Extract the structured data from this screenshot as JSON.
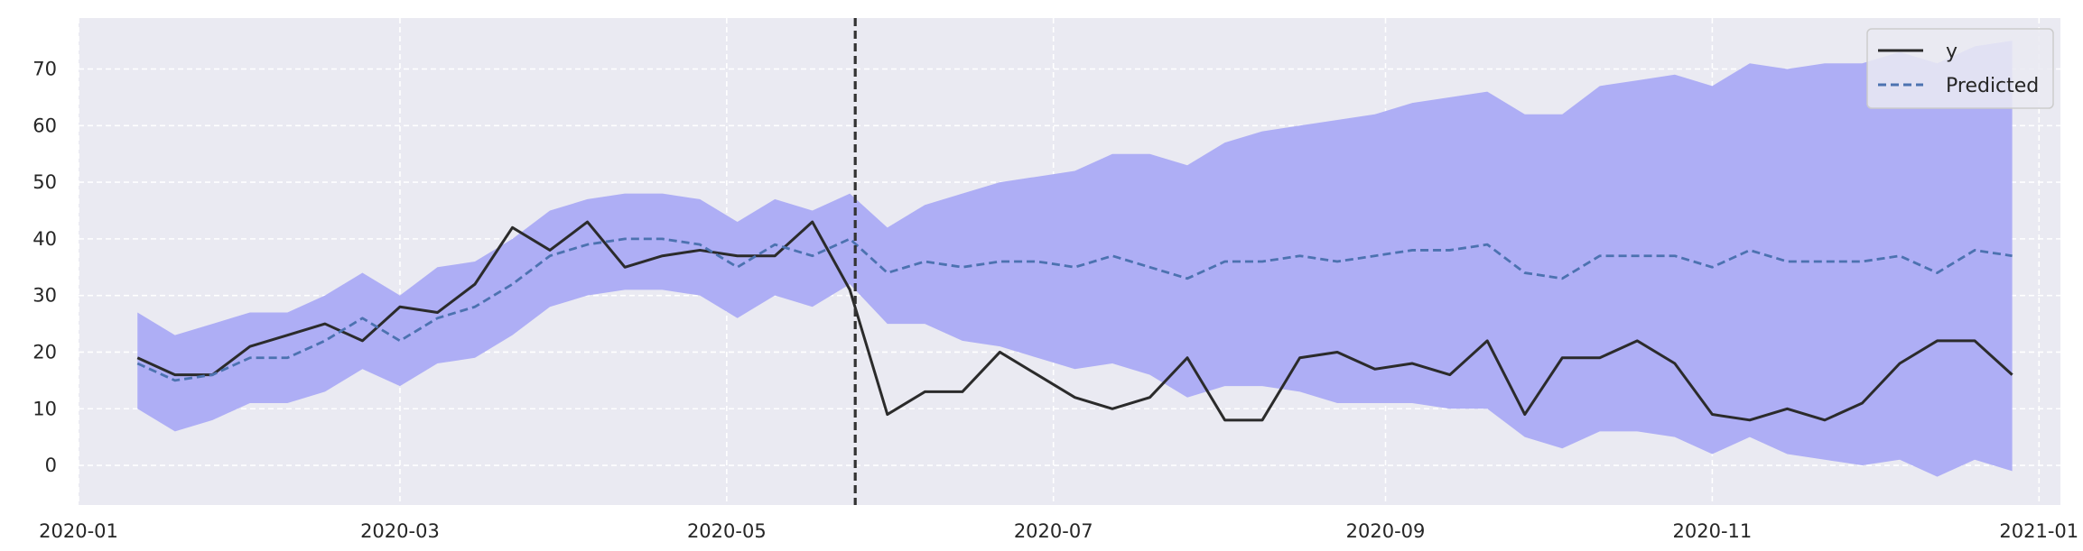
{
  "chart_data": {
    "type": "line",
    "title": "",
    "xlabel": "",
    "ylabel": "",
    "x_axis": {
      "type": "date",
      "range": [
        "2020-01-01",
        "2021-01-05"
      ],
      "ticks": [
        "2020-01-01",
        "2020-03-01",
        "2020-05-01",
        "2020-07-01",
        "2020-09-01",
        "2020-11-01",
        "2021-01-01"
      ],
      "tick_labels": [
        "2020-01",
        "2020-03",
        "2020-05",
        "2020-07",
        "2020-09",
        "2020-11",
        "2021-01"
      ]
    },
    "y_axis": {
      "range": [
        -7,
        79
      ],
      "ticks": [
        0,
        10,
        20,
        30,
        40,
        50,
        60,
        70
      ],
      "tick_labels": [
        "0",
        "10",
        "20",
        "30",
        "40",
        "50",
        "60",
        "70"
      ]
    },
    "grid": true,
    "grid_style": "dashed white",
    "background": "#eaeaf2",
    "legend_position": "top-right",
    "dates": [
      "2020-01-12",
      "2020-01-19",
      "2020-01-26",
      "2020-02-02",
      "2020-02-09",
      "2020-02-16",
      "2020-02-23",
      "2020-03-01",
      "2020-03-08",
      "2020-03-15",
      "2020-03-22",
      "2020-03-29",
      "2020-04-05",
      "2020-04-12",
      "2020-04-19",
      "2020-04-26",
      "2020-05-03",
      "2020-05-10",
      "2020-05-17",
      "2020-05-24",
      "2020-05-31",
      "2020-06-07",
      "2020-06-14",
      "2020-06-21",
      "2020-06-28",
      "2020-07-05",
      "2020-07-12",
      "2020-07-19",
      "2020-07-26",
      "2020-08-02",
      "2020-08-09",
      "2020-08-16",
      "2020-08-23",
      "2020-08-30",
      "2020-09-06",
      "2020-09-13",
      "2020-09-20",
      "2020-09-27",
      "2020-10-04",
      "2020-10-11",
      "2020-10-18",
      "2020-10-25",
      "2020-11-01",
      "2020-11-08",
      "2020-11-15",
      "2020-11-22",
      "2020-11-29",
      "2020-12-06",
      "2020-12-13",
      "2020-12-20",
      "2020-12-27"
    ],
    "series": [
      {
        "name": "y",
        "color": "#2b2b2b",
        "style": "solid",
        "values": [
          19,
          16,
          16,
          21,
          23,
          25,
          22,
          28,
          27,
          32,
          42,
          38,
          43,
          35,
          37,
          38,
          37,
          37,
          43,
          31,
          9,
          13,
          13,
          20,
          16,
          12,
          10,
          12,
          19,
          8,
          8,
          19,
          20,
          17,
          18,
          16,
          22,
          9,
          19,
          19,
          22,
          18,
          9,
          8,
          10,
          8,
          11,
          18,
          22,
          22,
          16
        ]
      },
      {
        "name": "Predicted",
        "color": "#4c72b0",
        "style": "dashed",
        "values": [
          18,
          15,
          16,
          19,
          19,
          22,
          26,
          22,
          26,
          28,
          32,
          37,
          39,
          40,
          40,
          39,
          35,
          39,
          37,
          40,
          34,
          36,
          35,
          36,
          36,
          35,
          37,
          35,
          33,
          36,
          36,
          37,
          36,
          37,
          38,
          38,
          39,
          34,
          33,
          37,
          37,
          37,
          35,
          38,
          36,
          36,
          36,
          37,
          34,
          38,
          37
        ]
      }
    ],
    "interval": {
      "color": "#aeaef5",
      "lower": [
        10,
        6,
        8,
        11,
        11,
        13,
        17,
        14,
        18,
        19,
        23,
        28,
        30,
        31,
        31,
        30,
        26,
        30,
        28,
        32,
        25,
        25,
        22,
        21,
        19,
        17,
        18,
        16,
        12,
        14,
        14,
        13,
        11,
        11,
        11,
        10,
        10,
        5,
        3,
        6,
        6,
        5,
        2,
        5,
        2,
        1,
        0,
        1,
        -2,
        1,
        -1
      ],
      "upper": [
        27,
        23,
        25,
        27,
        27,
        30,
        34,
        30,
        35,
        36,
        40,
        45,
        47,
        48,
        48,
        47,
        43,
        47,
        45,
        48,
        42,
        46,
        48,
        50,
        51,
        52,
        55,
        55,
        53,
        57,
        59,
        60,
        61,
        62,
        64,
        65,
        66,
        62,
        62,
        67,
        68,
        69,
        67,
        71,
        70,
        71,
        71,
        73,
        71,
        74,
        75
      ]
    },
    "vline": {
      "date": "2020-05-25",
      "style": "dashed",
      "color": "#333333"
    }
  }
}
